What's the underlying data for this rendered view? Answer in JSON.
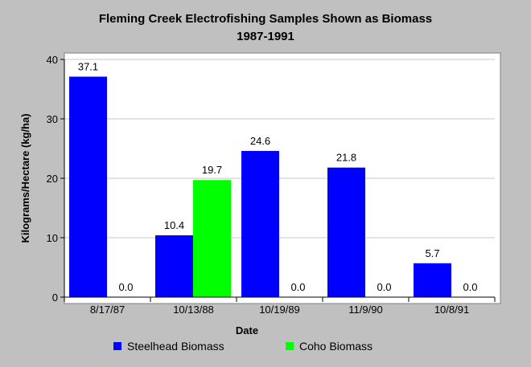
{
  "chart_data": {
    "type": "bar",
    "title": "Fleming Creek Electrofishing Samples Shown as Biomass",
    "subtitle": "1987-1991",
    "xlabel": "Date",
    "ylabel": "Kilograms/Hectare (kg/ha)",
    "ylim": [
      0,
      40
    ],
    "yticks": [
      "0",
      "10",
      "20",
      "30",
      "40"
    ],
    "categories": [
      "8/17/87",
      "10/13/88",
      "10/19/89",
      "11/9/90",
      "10/8/91"
    ],
    "series": [
      {
        "name": "Steelhead Biomass",
        "color": "#0000ff",
        "values": [
          37.1,
          10.4,
          24.6,
          21.8,
          5.7
        ],
        "labels": [
          "37.1",
          "10.4",
          "24.6",
          "21.8",
          "5.7"
        ]
      },
      {
        "name": "Coho Biomass",
        "color": "#00ff00",
        "values": [
          0.0,
          19.7,
          0.0,
          0.0,
          0.0
        ],
        "labels": [
          "0.0",
          "19.7",
          "0.0",
          "0.0",
          "0.0"
        ]
      }
    ],
    "grid": true,
    "legend_position": "bottom"
  }
}
